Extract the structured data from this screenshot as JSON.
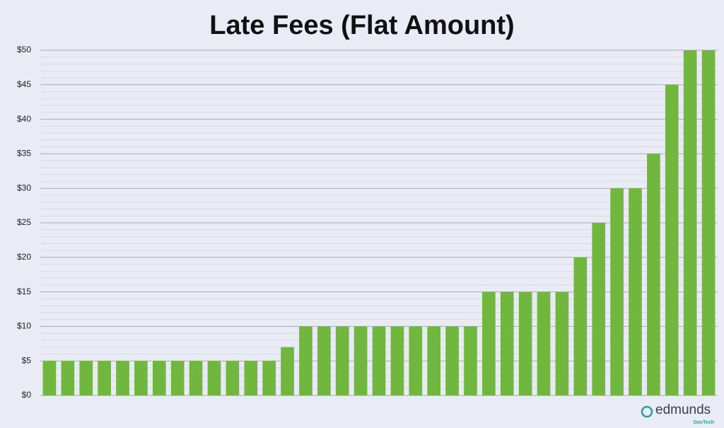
{
  "chart_data": {
    "type": "bar",
    "title": "Late Fees (Flat Amount)",
    "values": [
      5,
      5,
      5,
      5,
      5,
      5,
      5,
      5,
      5,
      5,
      5,
      5,
      5,
      7,
      10,
      10,
      10,
      10,
      10,
      10,
      10,
      10,
      10,
      10,
      15,
      15,
      15,
      15,
      15,
      20,
      25,
      30,
      30,
      35,
      45,
      50,
      50
    ],
    "color": "#70b63f",
    "ylim": [
      0,
      50
    ],
    "yticks": [
      {
        "value": 0,
        "label": "$0"
      },
      {
        "value": 5,
        "label": "$5"
      },
      {
        "value": 10,
        "label": "$10"
      },
      {
        "value": 15,
        "label": "$15"
      },
      {
        "value": 20,
        "label": "$20"
      },
      {
        "value": 25,
        "label": "$25"
      },
      {
        "value": 30,
        "label": "$30"
      },
      {
        "value": 35,
        "label": "$35"
      },
      {
        "value": 40,
        "label": "$40"
      },
      {
        "value": 45,
        "label": "$45"
      },
      {
        "value": 50,
        "label": "$50"
      }
    ],
    "grid": true,
    "minor_grid": true
  },
  "logo": {
    "name": "edmunds",
    "sub": "GovTech"
  }
}
